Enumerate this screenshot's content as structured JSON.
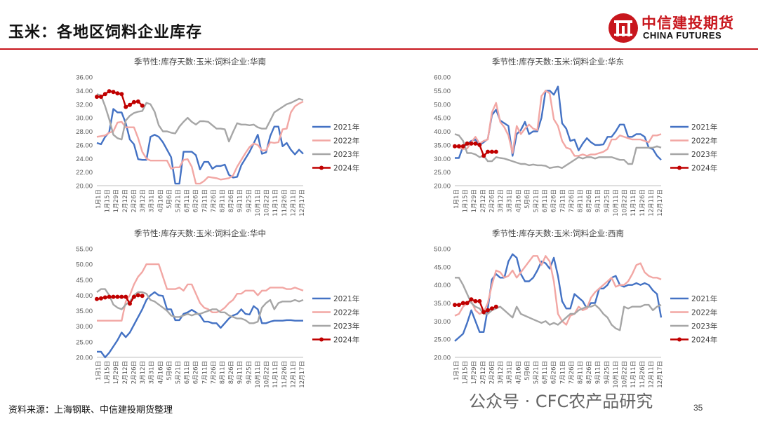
{
  "header": {
    "title": "玉米：各地区饲料企业库存",
    "logo_cn": "中信建投期货",
    "logo_en": "CHINA FUTURES"
  },
  "footer": {
    "source": "资料来源：上海钢联、中信建投期货整理",
    "watermark": "公众号 · CFC农产品研究",
    "page_number": "35"
  },
  "colors": {
    "brand_red": "#c8161d",
    "s2021": "#4472c4",
    "s2022": "#f2a7a4",
    "s2023": "#a6a6a6",
    "s2024": "#c00000"
  },
  "chart_data": [
    {
      "type": "line",
      "title": "季节性:库存天数:玉米:饲料企业:华南",
      "ylim": [
        20,
        36
      ],
      "yticks": [
        "20.00",
        "22.00",
        "24.00",
        "26.00",
        "28.00",
        "30.00",
        "32.00",
        "34.00",
        "36.00"
      ],
      "xlabels": [
        "1月1日",
        "1月15日",
        "1月29日",
        "2月12日",
        "2月26日",
        "3月12日",
        "3月31日",
        "4月16日",
        "5月6日",
        "5月21日",
        "6月11日",
        "6月26日",
        "7月11日",
        "7月26日",
        "8月11日",
        "8月26日",
        "9月11日",
        "9月25日",
        "10月11日",
        "10月22日",
        "11月11日",
        "11月26日",
        "12月11日",
        "12月17日"
      ],
      "legend_position": "right",
      "series": [
        {
          "name": "2021年",
          "values": [
            26.3,
            26.1,
            27.2,
            27.9,
            31.3,
            30.8,
            30.8,
            29.2,
            26.8,
            26.1,
            23.9,
            23.8,
            23.8,
            27.2,
            27.5,
            27.2,
            26.4,
            25.3,
            24.2,
            20.3,
            20.3,
            25.0,
            25.0,
            25.0,
            24.5,
            22.4,
            23.5,
            23.5,
            22.5,
            22.9,
            22.9,
            23.1,
            21.6,
            21.2,
            21.3,
            23.0,
            24.0,
            25.0,
            26.2,
            27.5,
            24.7,
            24.9,
            27.3,
            28.7,
            28.7,
            25.8,
            26.3,
            25.3,
            24.6,
            25.3,
            24.7
          ]
        },
        {
          "name": "2022年",
          "values": [
            27.2,
            27.3,
            27.4,
            27.8,
            28.0,
            29.3,
            29.4,
            28.6,
            28.6,
            28.6,
            27.0,
            25.0,
            24.0,
            23.7,
            23.7,
            23.7,
            23.7,
            23.7,
            22.5,
            22.7,
            22.7,
            23.8,
            23.9,
            22.8,
            20.3,
            20.3,
            20.7,
            21.3,
            21.2,
            21.1,
            20.9,
            21.0,
            21.1,
            21.5,
            22.8,
            23.8,
            24.8,
            25.7,
            26.2,
            26.0,
            25.2,
            25.2,
            26.4,
            26.3,
            26.4,
            28.3,
            28.4,
            30.8,
            31.7,
            32.1,
            32.4
          ]
        },
        {
          "name": "2023年",
          "values": [
            33.5,
            33.3,
            31.7,
            29.8,
            27.5,
            27.0,
            26.8,
            29.6,
            30.3,
            30.7,
            30.9,
            31.0,
            32.2,
            32.0,
            30.9,
            28.9,
            28.0,
            28.0,
            27.8,
            27.7,
            28.7,
            29.4,
            30.0,
            29.4,
            29.0,
            29.5,
            29.5,
            29.4,
            28.9,
            28.4,
            28.4,
            28.3,
            26.5,
            27.9,
            29.2,
            29.0,
            29.0,
            28.9,
            29.0,
            28.6,
            28.4,
            28.4,
            29.6,
            30.8,
            31.2,
            31.6,
            32.0,
            32.2,
            32.5,
            32.8,
            32.6
          ]
        },
        {
          "name": "2024年",
          "values": [
            33.1,
            33.1,
            33.5,
            33.9,
            33.8,
            33.6,
            33.5,
            31.6,
            31.9,
            32.3,
            32.4,
            31.8
          ]
        }
      ]
    },
    {
      "type": "line",
      "title": "季节性:库存天数:玉米:饲料企业:华东",
      "ylim": [
        20,
        60
      ],
      "yticks": [
        "20.00",
        "25.00",
        "30.00",
        "35.00",
        "40.00",
        "45.00",
        "50.00",
        "55.00",
        "60.00"
      ],
      "xlabels": [
        "1月1日",
        "1月15日",
        "1月29日",
        "2月12日",
        "2月26日",
        "3月12日",
        "3月31日",
        "4月16日",
        "5月6日",
        "5月21日",
        "6月11日",
        "6月26日",
        "7月11日",
        "7月26日",
        "8月11日",
        "8月26日",
        "9月11日",
        "9月25日",
        "10月11日",
        "10月22日",
        "11月11日",
        "11月26日",
        "12月11日",
        "12月17日"
      ],
      "legend_position": "right",
      "series": [
        {
          "name": "2021年",
          "values": [
            30.2,
            30.2,
            34.5,
            35.2,
            36.5,
            37.0,
            35.0,
            36.0,
            37.2,
            46.0,
            48.0,
            44.0,
            43.0,
            42.0,
            31.0,
            39.0,
            40.5,
            43.5,
            39.0,
            40.0,
            40.0,
            45.0,
            55.0,
            55.0,
            53.5,
            56.5,
            43.0,
            41.0,
            36.5,
            37.0,
            33.0,
            35.5,
            37.5,
            36.0,
            35.0,
            35.0,
            35.2,
            38.0,
            38.0,
            40.0,
            42.5,
            42.5,
            38.0,
            38.0,
            39.0,
            39.0,
            38.0,
            34.0,
            33.5,
            31.0,
            29.5
          ]
        },
        {
          "name": "2022年",
          "values": [
            34.5,
            34.0,
            33.5,
            33.7,
            36.0,
            38.0,
            35.5,
            36.5,
            37.0,
            47.0,
            50.5,
            43.5,
            41.5,
            38.5,
            32.0,
            42.0,
            39.0,
            41.0,
            42.5,
            41.0,
            40.5,
            53.0,
            55.0,
            54.0,
            44.5,
            42.0,
            36.5,
            34.0,
            33.5,
            31.0,
            31.0,
            31.5,
            31.0,
            31.5,
            31.5,
            32.0,
            32.5,
            33.5,
            37.0,
            37.0,
            38.5,
            38.0,
            37.5,
            37.0,
            37.0,
            37.0,
            36.5,
            36.0,
            38.5,
            38.5,
            39.0
          ]
        },
        {
          "name": "2023年",
          "values": [
            39.0,
            38.5,
            36.5,
            32.0,
            32.0,
            31.5,
            30.5,
            31.0,
            29.0,
            29.0,
            30.5,
            30.2,
            30.0,
            29.5,
            29.0,
            28.5,
            28.0,
            28.0,
            27.5,
            27.8,
            27.5,
            27.5,
            27.3,
            26.5,
            26.8,
            27.0,
            26.5,
            27.5,
            28.5,
            29.5,
            30.5,
            30.0,
            30.5,
            30.5,
            30.0,
            30.5,
            30.5,
            30.5,
            30.5,
            30.0,
            29.5,
            29.5,
            28.0,
            28.0,
            34.0,
            34.0,
            34.0,
            34.0,
            34.0,
            34.5,
            34.0
          ]
        },
        {
          "name": "2024年",
          "values": [
            34.5,
            34.5,
            34.5,
            35.5,
            35.5,
            35.5,
            35.0,
            31.0,
            32.5,
            32.5,
            32.5
          ]
        }
      ]
    },
    {
      "type": "line",
      "title": "季节性:库存天数:玉米:饲料企业:华中",
      "ylim": [
        20,
        55
      ],
      "yticks": [
        "20.00",
        "25.00",
        "30.00",
        "35.00",
        "40.00",
        "45.00",
        "50.00",
        "55.00"
      ],
      "xlabels": [
        "1月1日",
        "1月15日",
        "1月29日",
        "2月12日",
        "2月26日",
        "3月12日",
        "3月31日",
        "4月16日",
        "5月6日",
        "5月21日",
        "6月11日",
        "6月26日",
        "7月11日",
        "7月26日",
        "8月11日",
        "8月26日",
        "9月11日",
        "9月25日",
        "10月11日",
        "10月22日",
        "11月11日",
        "11月26日",
        "12月11日",
        "12月17日"
      ],
      "legend_position": "right",
      "series": [
        {
          "name": "2021年",
          "values": [
            21.8,
            21.8,
            20.0,
            21.5,
            23.5,
            25.5,
            28.0,
            26.5,
            28.0,
            30.5,
            33.0,
            35.5,
            38.5,
            40.0,
            41.0,
            40.0,
            39.8,
            35.5,
            35.5,
            32.0,
            32.0,
            34.0,
            34.5,
            35.3,
            34.5,
            33.5,
            31.5,
            31.5,
            31.0,
            31.0,
            29.5,
            31.0,
            32.5,
            33.5,
            34.0,
            35.5,
            34.0,
            33.8,
            36.5,
            35.5,
            31.0,
            31.0,
            31.5,
            31.8,
            31.8,
            31.8,
            32.0,
            32.0,
            31.8,
            31.8,
            31.8
          ]
        },
        {
          "name": "2022年",
          "values": [
            31.8,
            31.8,
            31.8,
            31.8,
            31.8,
            31.8,
            31.8,
            38.0,
            40.0,
            43.5,
            46.0,
            47.5,
            50.0,
            50.0,
            50.0,
            50.0,
            46.0,
            42.0,
            42.0,
            42.0,
            42.5,
            41.5,
            43.5,
            43.5,
            40.5,
            37.5,
            36.0,
            35.5,
            34.5,
            34.5,
            35.0,
            36.0,
            37.5,
            38.5,
            40.5,
            40.5,
            41.5,
            41.5,
            41.5,
            40.0,
            41.5,
            41.5,
            42.5,
            42.5,
            42.5,
            42.5,
            42.0,
            42.0,
            42.5,
            42.0,
            41.5
          ]
        },
        {
          "name": "2023年",
          "values": [
            41.0,
            42.0,
            42.0,
            40.0,
            37.0,
            36.0,
            35.5,
            37.0,
            38.0,
            40.0,
            41.0,
            41.0,
            40.5,
            38.5,
            38.0,
            37.0,
            36.0,
            35.0,
            33.5,
            33.0,
            33.0,
            33.5,
            34.0,
            33.5,
            34.0,
            34.0,
            34.5,
            35.0,
            35.5,
            35.5,
            34.5,
            34.5,
            33.5,
            33.0,
            32.5,
            32.5,
            32.0,
            31.0,
            31.0,
            31.5,
            36.0,
            37.5,
            38.5,
            35.5,
            37.5,
            38.0,
            38.0,
            38.0,
            38.5,
            38.0,
            38.5
          ]
        },
        {
          "name": "2024年",
          "values": [
            38.8,
            39.0,
            39.3,
            39.5,
            39.5,
            39.5,
            39.5,
            39.5,
            37.3,
            39.5,
            40.0,
            39.8
          ]
        }
      ]
    },
    {
      "type": "line",
      "title": "季节性:库存天数:玉米:饲料企业:西南",
      "ylim": [
        20,
        50
      ],
      "yticks": [
        "20.00",
        "25.00",
        "30.00",
        "35.00",
        "40.00",
        "45.00",
        "50.00"
      ],
      "xlabels": [
        "1月1日",
        "1月15日",
        "1月29日",
        "2月12日",
        "2月26日",
        "3月12日",
        "3月31日",
        "4月16日",
        "5月6日",
        "5月21日",
        "6月11日",
        "6月26日",
        "7月11日",
        "7月26日",
        "8月11日",
        "8月26日",
        "9月11日",
        "9月25日",
        "10月11日",
        "10月22日",
        "11月11日",
        "11月26日",
        "12月11日",
        "12月17日"
      ],
      "legend_position": "right",
      "series": [
        {
          "name": "2021年",
          "values": [
            24.5,
            25.5,
            26.5,
            29.5,
            33.0,
            30.0,
            27.0,
            27.0,
            33.5,
            41.5,
            43.0,
            42.0,
            42.0,
            46.5,
            48.5,
            47.5,
            43.0,
            41.0,
            41.0,
            42.0,
            44.0,
            46.5,
            46.0,
            44.5,
            47.5,
            42.5,
            35.5,
            33.5,
            33.5,
            37.5,
            36.5,
            35.5,
            33.5,
            35.0,
            35.0,
            39.0,
            39.0,
            40.0,
            42.0,
            42.5,
            40.0,
            39.5,
            40.0,
            40.0,
            40.5,
            40.0,
            40.5,
            40.0,
            38.5,
            37.5,
            31.0
          ]
        },
        {
          "name": "2022年",
          "values": [
            31.5,
            32.0,
            34.0,
            35.0,
            35.5,
            33.0,
            32.0,
            32.5,
            35.0,
            40.0,
            44.0,
            43.5,
            42.0,
            42.5,
            44.0,
            42.0,
            43.5,
            45.0,
            46.5,
            48.0,
            48.0,
            45.5,
            48.0,
            46.5,
            41.0,
            32.0,
            30.0,
            29.0,
            31.5,
            32.0,
            34.0,
            33.0,
            33.5,
            36.5,
            38.0,
            39.0,
            40.0,
            41.0,
            42.0,
            39.5,
            40.0,
            40.0,
            41.0,
            43.0,
            45.5,
            46.0,
            43.5,
            42.5,
            42.0,
            42.0,
            41.5
          ]
        },
        {
          "name": "2023年",
          "values": [
            42.0,
            42.0,
            40.0,
            37.5,
            35.0,
            34.0,
            33.5,
            32.0,
            32.0,
            33.0,
            33.5,
            34.0,
            33.0,
            32.0,
            31.0,
            34.0,
            32.0,
            31.5,
            31.0,
            30.5,
            30.0,
            29.5,
            30.0,
            29.0,
            29.5,
            29.0,
            30.0,
            31.0,
            32.0,
            32.0,
            33.0,
            33.5,
            34.0,
            34.0,
            34.5,
            33.5,
            32.0,
            31.0,
            29.0,
            28.0,
            27.5,
            34.0,
            33.5,
            34.0,
            34.0,
            34.0,
            34.5,
            34.5,
            33.0,
            34.0,
            34.5
          ]
        },
        {
          "name": "2024年",
          "values": [
            34.5,
            34.5,
            35.0,
            35.0,
            36.0,
            35.5,
            35.5,
            32.5,
            33.0,
            33.5,
            34.0
          ]
        }
      ]
    }
  ]
}
